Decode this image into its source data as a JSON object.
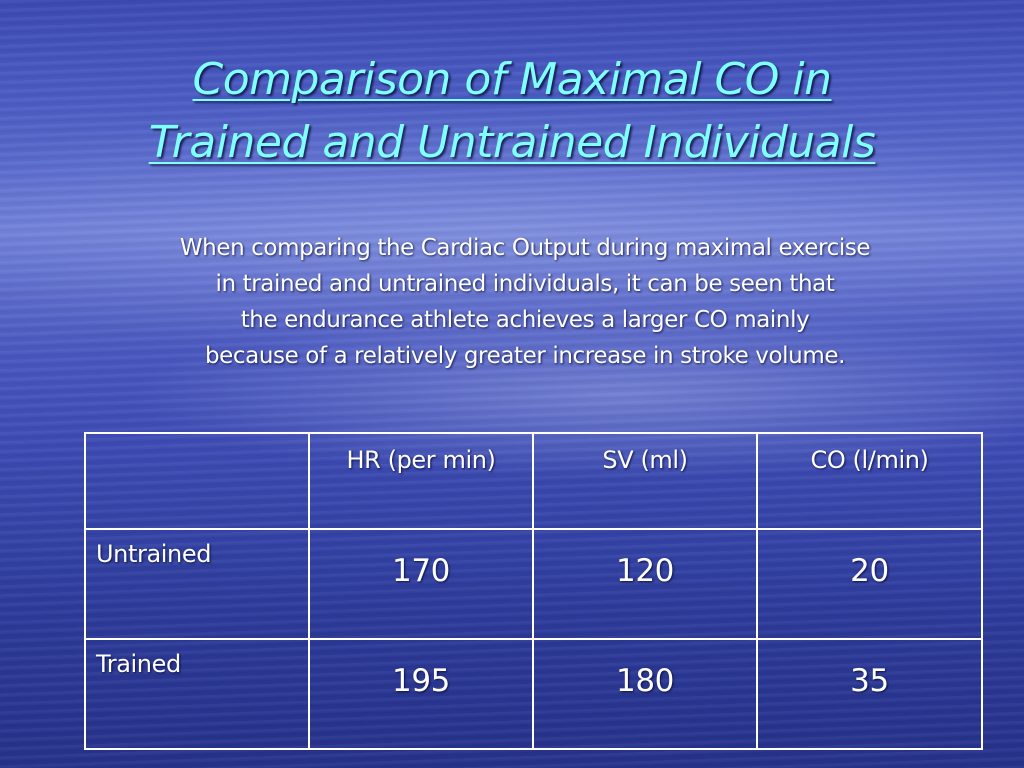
{
  "slide": {
    "title_line1": "Comparison of Maximal CO in",
    "title_line2": "Trained and Untrained Individuals",
    "body_lines": [
      "When comparing the Cardiac Output during maximal exercise",
      "in trained and untrained individuals, it can be seen that",
      "the endurance athlete achieves a larger CO mainly",
      "because of a relatively greater increase in stroke volume."
    ]
  },
  "table": {
    "headers": [
      "",
      "HR (per min)",
      "SV (ml)",
      "CO (l/min)"
    ],
    "rows": [
      {
        "label": "Untrained",
        "hr": "170",
        "sv": "120",
        "co": "20"
      },
      {
        "label": "Trained",
        "hr": "195",
        "sv": "180",
        "co": "35"
      }
    ]
  },
  "colors": {
    "title": "#80ffff",
    "text": "#ffffff",
    "background": "#4a58bf",
    "table_border": "#ffffff"
  }
}
